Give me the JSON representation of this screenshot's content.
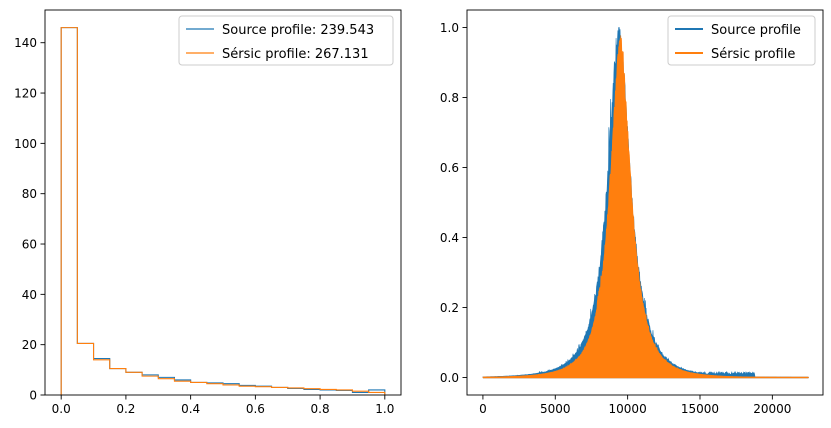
{
  "chart_data": [
    {
      "type": "histogram",
      "xlim": [
        -0.05,
        1.05
      ],
      "ylim": [
        0,
        153
      ],
      "xticks": [
        0.0,
        0.2,
        0.4,
        0.6,
        0.8,
        1.0
      ],
      "xtick_labels": [
        "0.0",
        "0.2",
        "0.4",
        "0.6",
        "0.8",
        "1.0"
      ],
      "yticks": [
        0,
        20,
        40,
        60,
        80,
        100,
        120,
        140
      ],
      "ytick_labels": [
        "0",
        "20",
        "40",
        "60",
        "80",
        "100",
        "120",
        "140"
      ],
      "bin_edges": [
        0.0,
        0.05,
        0.1,
        0.15,
        0.2,
        0.25,
        0.3,
        0.35,
        0.4,
        0.45,
        0.5,
        0.55,
        0.6,
        0.65,
        0.7,
        0.75,
        0.8,
        0.85,
        0.9,
        0.95,
        1.0
      ],
      "legend_position": "top-right",
      "series": [
        {
          "name": "Source profile: 239.543",
          "color": "#1f77b4",
          "values": [
            146,
            20.5,
            14.5,
            10.5,
            9,
            8,
            7,
            6,
            5,
            4.8,
            4.5,
            3.8,
            3.5,
            3,
            2.6,
            2.2,
            2,
            1.8,
            1,
            2
          ]
        },
        {
          "name": "Sérsic profile: 267.131",
          "color": "#ff7f0e",
          "values": [
            146,
            20.5,
            14,
            10.5,
            9,
            7.5,
            6.5,
            5.5,
            5,
            4.5,
            4,
            3.5,
            3.3,
            3,
            2.8,
            2.5,
            2.2,
            2,
            1.5,
            1
          ]
        }
      ]
    },
    {
      "type": "area",
      "xlim": [
        -1100,
        23500
      ],
      "ylim": [
        -0.05,
        1.05
      ],
      "xticks": [
        0,
        5000,
        10000,
        15000,
        20000
      ],
      "xtick_labels": [
        "0",
        "5000",
        "10000",
        "15000",
        "20000"
      ],
      "yticks": [
        0.0,
        0.2,
        0.4,
        0.6,
        0.8,
        1.0
      ],
      "ytick_labels": [
        "0.0",
        "0.2",
        "0.4",
        "0.6",
        "0.8",
        "1.0"
      ],
      "legend_position": "top-right",
      "series": [
        {
          "name": "Source profile",
          "color": "#1f77b4",
          "x_range": [
            0,
            22500
          ],
          "peak_x": 9400,
          "peak_y": 1.0,
          "width": 850,
          "baseline": 0.0,
          "noise": 0.09,
          "wing_range": [
            3800,
            18800
          ],
          "wing_level": 0.012
        },
        {
          "name": "Sérsic profile",
          "color": "#ff7f0e",
          "x_range": [
            0,
            22500
          ],
          "peak_x": 9500,
          "peak_y": 0.97,
          "width": 780,
          "baseline": 0.0,
          "noise": 0.05
        }
      ]
    }
  ]
}
